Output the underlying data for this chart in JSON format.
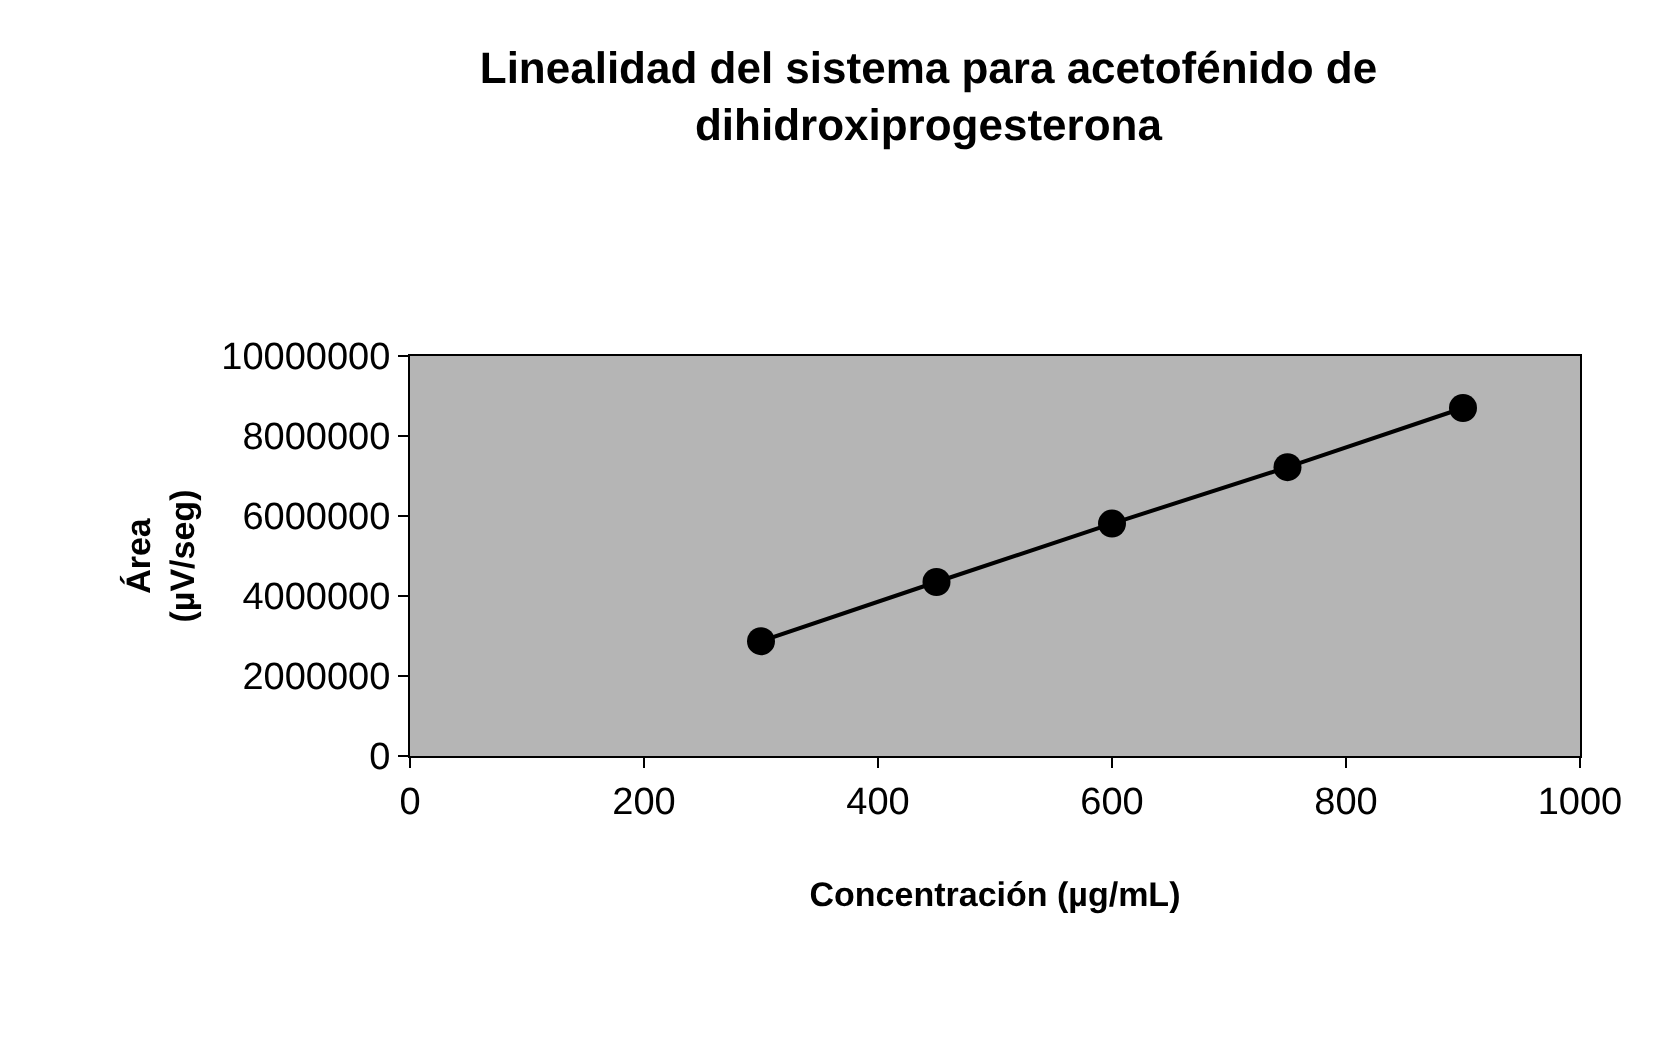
{
  "chart_data": {
    "type": "line",
    "title": "Linealidad del sistema para acetofénido de\ndihidroxiprogesterona",
    "xlabel": "Concentración (µg/mL)",
    "ylabel": "Área\n(µV/seg)",
    "x": [
      300,
      450,
      600,
      750,
      900
    ],
    "series": [
      {
        "color": "#000000",
        "values": [
          2870000,
          4350000,
          5810000,
          7220000,
          8700000
        ]
      }
    ],
    "xlim": [
      0,
      1000
    ],
    "xticks": [
      0,
      200,
      400,
      600,
      800,
      1000
    ],
    "ylim": [
      0,
      10000000
    ],
    "yticks": [
      0,
      2000000,
      4000000,
      6000000,
      8000000,
      10000000
    ],
    "marker": "circle",
    "line_style": "solid",
    "grid": false
  }
}
